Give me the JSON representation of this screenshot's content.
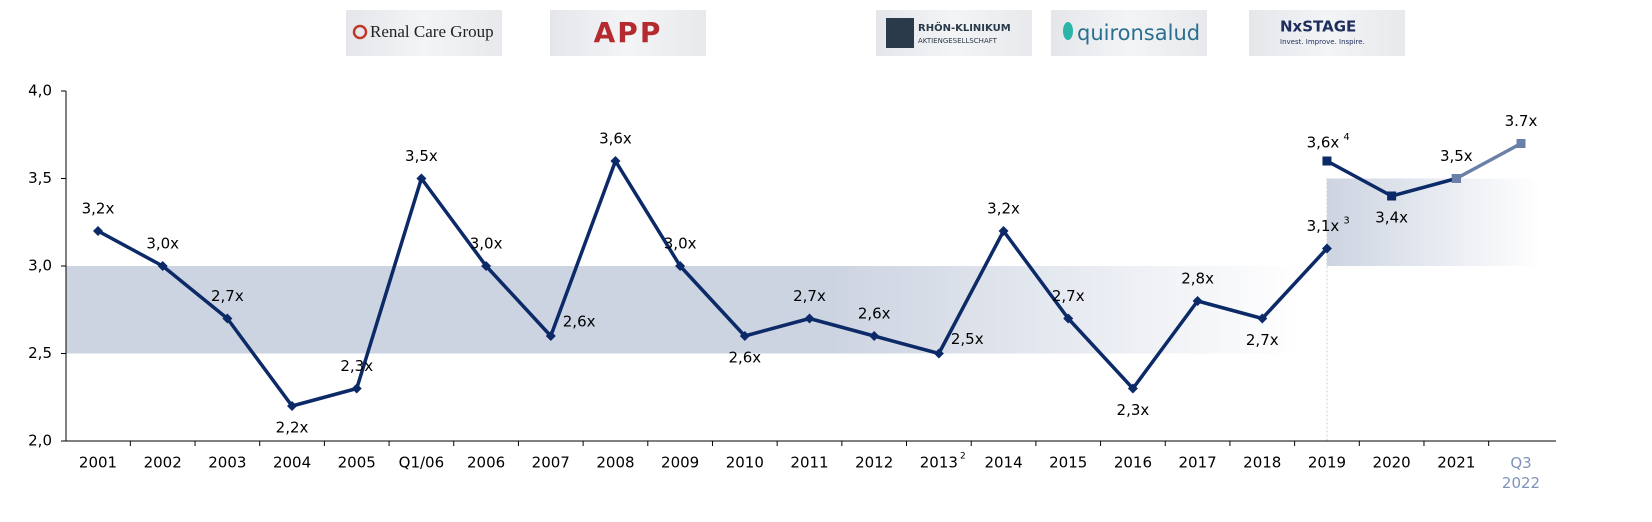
{
  "logos": [
    "Renal Care Group",
    "APP",
    "RHÖN-KLINIKUM",
    "AKTIENGESELLSCHAFT",
    "quironsalud",
    "NxSTAGE",
    "Invest. Improve. Inspire."
  ],
  "chart_data": {
    "type": "line",
    "categories": [
      "2001",
      "2002",
      "2003",
      "2004",
      "2005",
      "Q1/06",
      "2006",
      "2007",
      "2008",
      "2009",
      "2010",
      "2011",
      "2012",
      "2013",
      "2014",
      "2015",
      "2016",
      "2017",
      "2018",
      "2019",
      "2020",
      "2021",
      "Q3 2022"
    ],
    "category_notes": [
      null,
      null,
      null,
      null,
      null,
      null,
      null,
      null,
      null,
      null,
      null,
      null,
      null,
      "2",
      null,
      null,
      null,
      null,
      null,
      null,
      null,
      null,
      null
    ],
    "highlight_categories_color": {
      "Q3 2022": "#7f93b8"
    },
    "series": [
      {
        "color": "#0c2a67",
        "marker": "diamond",
        "values": [
          3.2,
          3.0,
          2.7,
          2.2,
          2.3,
          3.5,
          3.0,
          2.6,
          3.6,
          3.0,
          2.6,
          2.7,
          2.6,
          2.5,
          3.2,
          2.7,
          2.3,
          2.8,
          2.7,
          3.1,
          null,
          null,
          null
        ],
        "value_labels": [
          "3,2x",
          "3,0x",
          "2,7x",
          "2,2x",
          "2,3x",
          "3,5x",
          "3,0x",
          "2,6x",
          "3,6x",
          "3,0x",
          "2,6x",
          "2,7x",
          "2,6x",
          "2,5x",
          "3,2x",
          "2,7x",
          "2,3x",
          "2,8x",
          "2,7x",
          "3,1x",
          null,
          null,
          null
        ],
        "label_notes": [
          null,
          null,
          null,
          null,
          null,
          null,
          null,
          null,
          null,
          null,
          null,
          null,
          null,
          null,
          null,
          null,
          null,
          null,
          null,
          "3",
          null,
          null,
          null
        ]
      },
      {
        "color": "#0c2a67",
        "marker": "square",
        "values": [
          null,
          null,
          null,
          null,
          null,
          null,
          null,
          null,
          null,
          null,
          null,
          null,
          null,
          null,
          null,
          null,
          null,
          null,
          null,
          3.6,
          3.4,
          3.5,
          null
        ],
        "value_labels": [
          null,
          null,
          null,
          null,
          null,
          null,
          null,
          null,
          null,
          null,
          null,
          null,
          null,
          null,
          null,
          null,
          null,
          null,
          null,
          "3,6x",
          "3,4x",
          "3,5x",
          null
        ],
        "label_notes": [
          null,
          null,
          null,
          null,
          null,
          null,
          null,
          null,
          null,
          null,
          null,
          null,
          null,
          null,
          null,
          null,
          null,
          null,
          null,
          "4",
          null,
          null,
          null
        ]
      },
      {
        "color": "#6a80a8",
        "marker": "square",
        "values": [
          null,
          null,
          null,
          null,
          null,
          null,
          null,
          null,
          null,
          null,
          null,
          null,
          null,
          null,
          null,
          null,
          null,
          null,
          null,
          null,
          null,
          3.5,
          3.7
        ],
        "value_labels": [
          null,
          null,
          null,
          null,
          null,
          null,
          null,
          null,
          null,
          null,
          null,
          null,
          null,
          null,
          null,
          null,
          null,
          null,
          null,
          null,
          null,
          null,
          "3.7x"
        ],
        "label_notes": [
          null,
          null,
          null,
          null,
          null,
          null,
          null,
          null,
          null,
          null,
          null,
          null,
          null,
          null,
          null,
          null,
          null,
          null,
          null,
          null,
          null,
          null,
          null
        ]
      }
    ],
    "bands": [
      {
        "from": 2.5,
        "to": 3.0,
        "start": 0,
        "fade_end": 18
      },
      {
        "from": 3.0,
        "to": 3.5,
        "start": 19,
        "fade_end": 22
      }
    ],
    "ylim": [
      2.0,
      4.0
    ],
    "yticks": [
      {
        "value": 2.0,
        "label": "2,0"
      },
      {
        "value": 2.5,
        "label": "2,5"
      },
      {
        "value": 3.0,
        "label": "3,0"
      },
      {
        "value": 3.5,
        "label": "3,5"
      },
      {
        "value": 4.0,
        "label": "4,0"
      }
    ]
  }
}
